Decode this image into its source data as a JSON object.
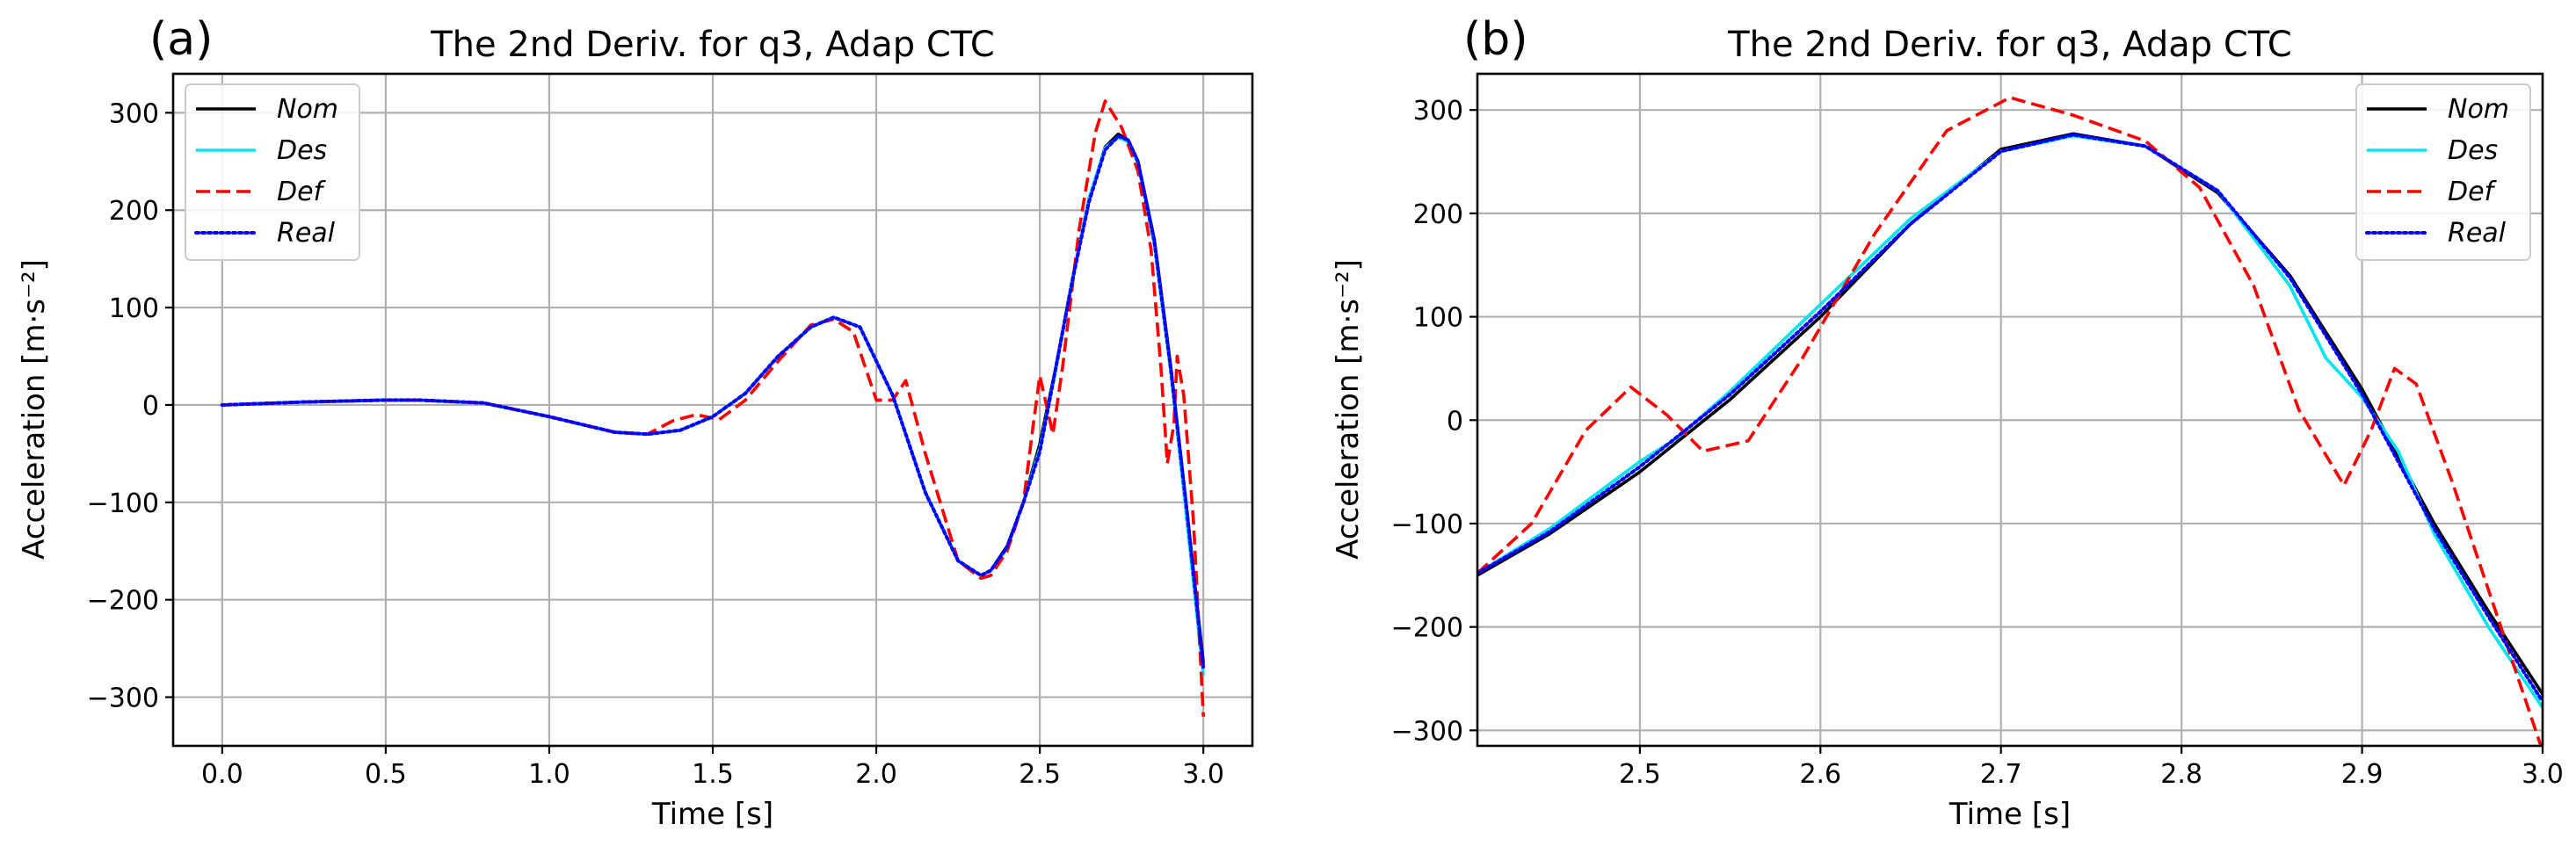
{
  "figure": {
    "panels": [
      "(a)",
      "(b)"
    ]
  },
  "chart_data": [
    {
      "type": "line",
      "panel": "(a)",
      "title": "The 2nd Deriv. for q3, Adap  CTC",
      "xlabel": "Time [s]",
      "ylabel": "Acceleration [m·s⁻²]",
      "xlim": [
        -0.15,
        3.15
      ],
      "ylim": [
        -350,
        340
      ],
      "xticks": [
        0.0,
        0.5,
        1.0,
        1.5,
        2.0,
        2.5,
        3.0
      ],
      "xtick_labels": [
        "0.0",
        "0.5",
        "1.0",
        "1.5",
        "2.0",
        "2.5",
        "3.0"
      ],
      "yticks": [
        -300,
        -200,
        -100,
        0,
        100,
        200,
        300
      ],
      "ytick_labels": [
        "−300",
        "−200",
        "−100",
        "0",
        "100",
        "200",
        "300"
      ],
      "grid": true,
      "legend_position": "top-left",
      "series": [
        {
          "name": "Nom",
          "color": "#000000",
          "style": "solid",
          "x": [
            0.0,
            0.25,
            0.5,
            0.6,
            0.8,
            1.0,
            1.2,
            1.3,
            1.4,
            1.5,
            1.6,
            1.7,
            1.8,
            1.87,
            1.95,
            2.05,
            2.15,
            2.25,
            2.32,
            2.35,
            2.4,
            2.45,
            2.5,
            2.55,
            2.6,
            2.65,
            2.7,
            2.74,
            2.77,
            2.8,
            2.85,
            2.9,
            2.95,
            3.0
          ],
          "y": [
            0,
            3,
            5,
            5,
            2,
            -12,
            -28,
            -30,
            -26,
            -12,
            12,
            50,
            80,
            90,
            80,
            10,
            -90,
            -160,
            -175,
            -170,
            -145,
            -100,
            -40,
            40,
            130,
            210,
            265,
            278,
            272,
            250,
            170,
            40,
            -110,
            -265
          ]
        },
        {
          "name": "Des",
          "color": "#00e5ee",
          "style": "solid",
          "x": [
            0.0,
            0.25,
            0.5,
            0.6,
            0.8,
            1.0,
            1.2,
            1.3,
            1.4,
            1.5,
            1.6,
            1.7,
            1.8,
            1.87,
            1.95,
            2.05,
            2.15,
            2.25,
            2.32,
            2.35,
            2.4,
            2.45,
            2.5,
            2.55,
            2.6,
            2.65,
            2.7,
            2.74,
            2.77,
            2.8,
            2.85,
            2.9,
            2.95,
            3.0
          ],
          "y": [
            0,
            3,
            5,
            5,
            2,
            -12,
            -28,
            -30,
            -26,
            -12,
            12,
            50,
            80,
            90,
            80,
            10,
            -90,
            -160,
            -175,
            -170,
            -147,
            -100,
            -45,
            38,
            130,
            212,
            264,
            275,
            270,
            248,
            165,
            35,
            -120,
            -278
          ]
        },
        {
          "name": "Def",
          "color": "#ff0000",
          "style": "dashed",
          "x": [
            0.0,
            0.25,
            0.5,
            0.6,
            0.8,
            1.0,
            1.2,
            1.3,
            1.38,
            1.45,
            1.52,
            1.6,
            1.7,
            1.8,
            1.87,
            1.93,
            2.0,
            2.05,
            2.09,
            2.15,
            2.25,
            2.32,
            2.35,
            2.4,
            2.45,
            2.48,
            2.5,
            2.52,
            2.54,
            2.57,
            2.62,
            2.67,
            2.7,
            2.75,
            2.8,
            2.84,
            2.87,
            2.89,
            2.91,
            2.92,
            2.94,
            2.97,
            3.0
          ],
          "y": [
            0,
            3,
            5,
            5,
            2,
            -12,
            -28,
            -30,
            -16,
            -10,
            -15,
            5,
            45,
            82,
            88,
            75,
            5,
            5,
            25,
            -50,
            -160,
            -178,
            -175,
            -150,
            -100,
            -20,
            30,
            0,
            -30,
            40,
            180,
            280,
            312,
            285,
            240,
            160,
            40,
            -60,
            -20,
            50,
            10,
            -120,
            -320
          ]
        },
        {
          "name": "Real",
          "color": "#0000ff",
          "style": "dotted",
          "x": [
            0.0,
            0.25,
            0.5,
            0.6,
            0.8,
            1.0,
            1.2,
            1.3,
            1.4,
            1.5,
            1.6,
            1.7,
            1.8,
            1.87,
            1.95,
            2.05,
            2.15,
            2.25,
            2.32,
            2.35,
            2.4,
            2.45,
            2.5,
            2.55,
            2.6,
            2.65,
            2.7,
            2.74,
            2.77,
            2.8,
            2.85,
            2.9,
            2.95,
            3.0
          ],
          "y": [
            0,
            3,
            5,
            5,
            2,
            -12,
            -28,
            -30,
            -26,
            -12,
            12,
            50,
            80,
            90,
            80,
            10,
            -90,
            -160,
            -175,
            -170,
            -146,
            -100,
            -48,
            40,
            128,
            208,
            262,
            276,
            272,
            250,
            168,
            38,
            -110,
            -270
          ]
        }
      ]
    },
    {
      "type": "line",
      "panel": "(b)",
      "title": "The 2nd Deriv. for q3, Adap  CTC",
      "xlabel": "Time [s]",
      "ylabel": "Acceleration [m·s⁻²]",
      "xlim": [
        2.41,
        3.0
      ],
      "ylim": [
        -315,
        335
      ],
      "xticks": [
        2.5,
        2.6,
        2.7,
        2.8,
        2.9,
        3.0
      ],
      "xtick_labels": [
        "2.5",
        "2.6",
        "2.7",
        "2.8",
        "2.9",
        "3.0"
      ],
      "yticks": [
        -300,
        -200,
        -100,
        0,
        100,
        200,
        300
      ],
      "ytick_labels": [
        "−300",
        "−200",
        "−100",
        "0",
        "100",
        "200",
        "300"
      ],
      "grid": true,
      "legend_position": "top-right",
      "series": [
        {
          "name": "Nom",
          "color": "#000000",
          "style": "solid",
          "x": [
            2.41,
            2.45,
            2.5,
            2.55,
            2.6,
            2.65,
            2.7,
            2.74,
            2.78,
            2.82,
            2.86,
            2.9,
            2.94,
            2.97,
            3.0
          ],
          "y": [
            -150,
            -110,
            -50,
            20,
            100,
            190,
            262,
            277,
            265,
            220,
            140,
            30,
            -100,
            -185,
            -265
          ]
        },
        {
          "name": "Des",
          "color": "#00e5ee",
          "style": "solid",
          "x": [
            2.41,
            2.45,
            2.5,
            2.52,
            2.55,
            2.6,
            2.65,
            2.7,
            2.74,
            2.78,
            2.82,
            2.86,
            2.88,
            2.9,
            2.92,
            2.94,
            2.97,
            3.0
          ],
          "y": [
            -148,
            -105,
            -40,
            -18,
            28,
            112,
            195,
            260,
            275,
            265,
            222,
            130,
            60,
            22,
            -30,
            -110,
            -200,
            -278
          ]
        },
        {
          "name": "Def",
          "color": "#ff0000",
          "style": "dashed",
          "x": [
            2.41,
            2.44,
            2.47,
            2.495,
            2.515,
            2.535,
            2.56,
            2.59,
            2.63,
            2.67,
            2.705,
            2.74,
            2.78,
            2.81,
            2.84,
            2.865,
            2.89,
            2.905,
            2.918,
            2.93,
            2.95,
            2.975,
            3.0
          ],
          "y": [
            -148,
            -100,
            -10,
            32,
            5,
            -30,
            -20,
            60,
            180,
            280,
            312,
            295,
            270,
            225,
            130,
            10,
            -63,
            -10,
            50,
            35,
            -60,
            -190,
            -320
          ]
        },
        {
          "name": "Real",
          "color": "#0000ff",
          "style": "dotted",
          "x": [
            2.41,
            2.45,
            2.5,
            2.55,
            2.6,
            2.65,
            2.7,
            2.74,
            2.78,
            2.82,
            2.86,
            2.9,
            2.94,
            2.97,
            3.0
          ],
          "y": [
            -148,
            -108,
            -45,
            25,
            105,
            190,
            260,
            276,
            265,
            222,
            138,
            25,
            -105,
            -190,
            -272
          ]
        }
      ]
    }
  ]
}
